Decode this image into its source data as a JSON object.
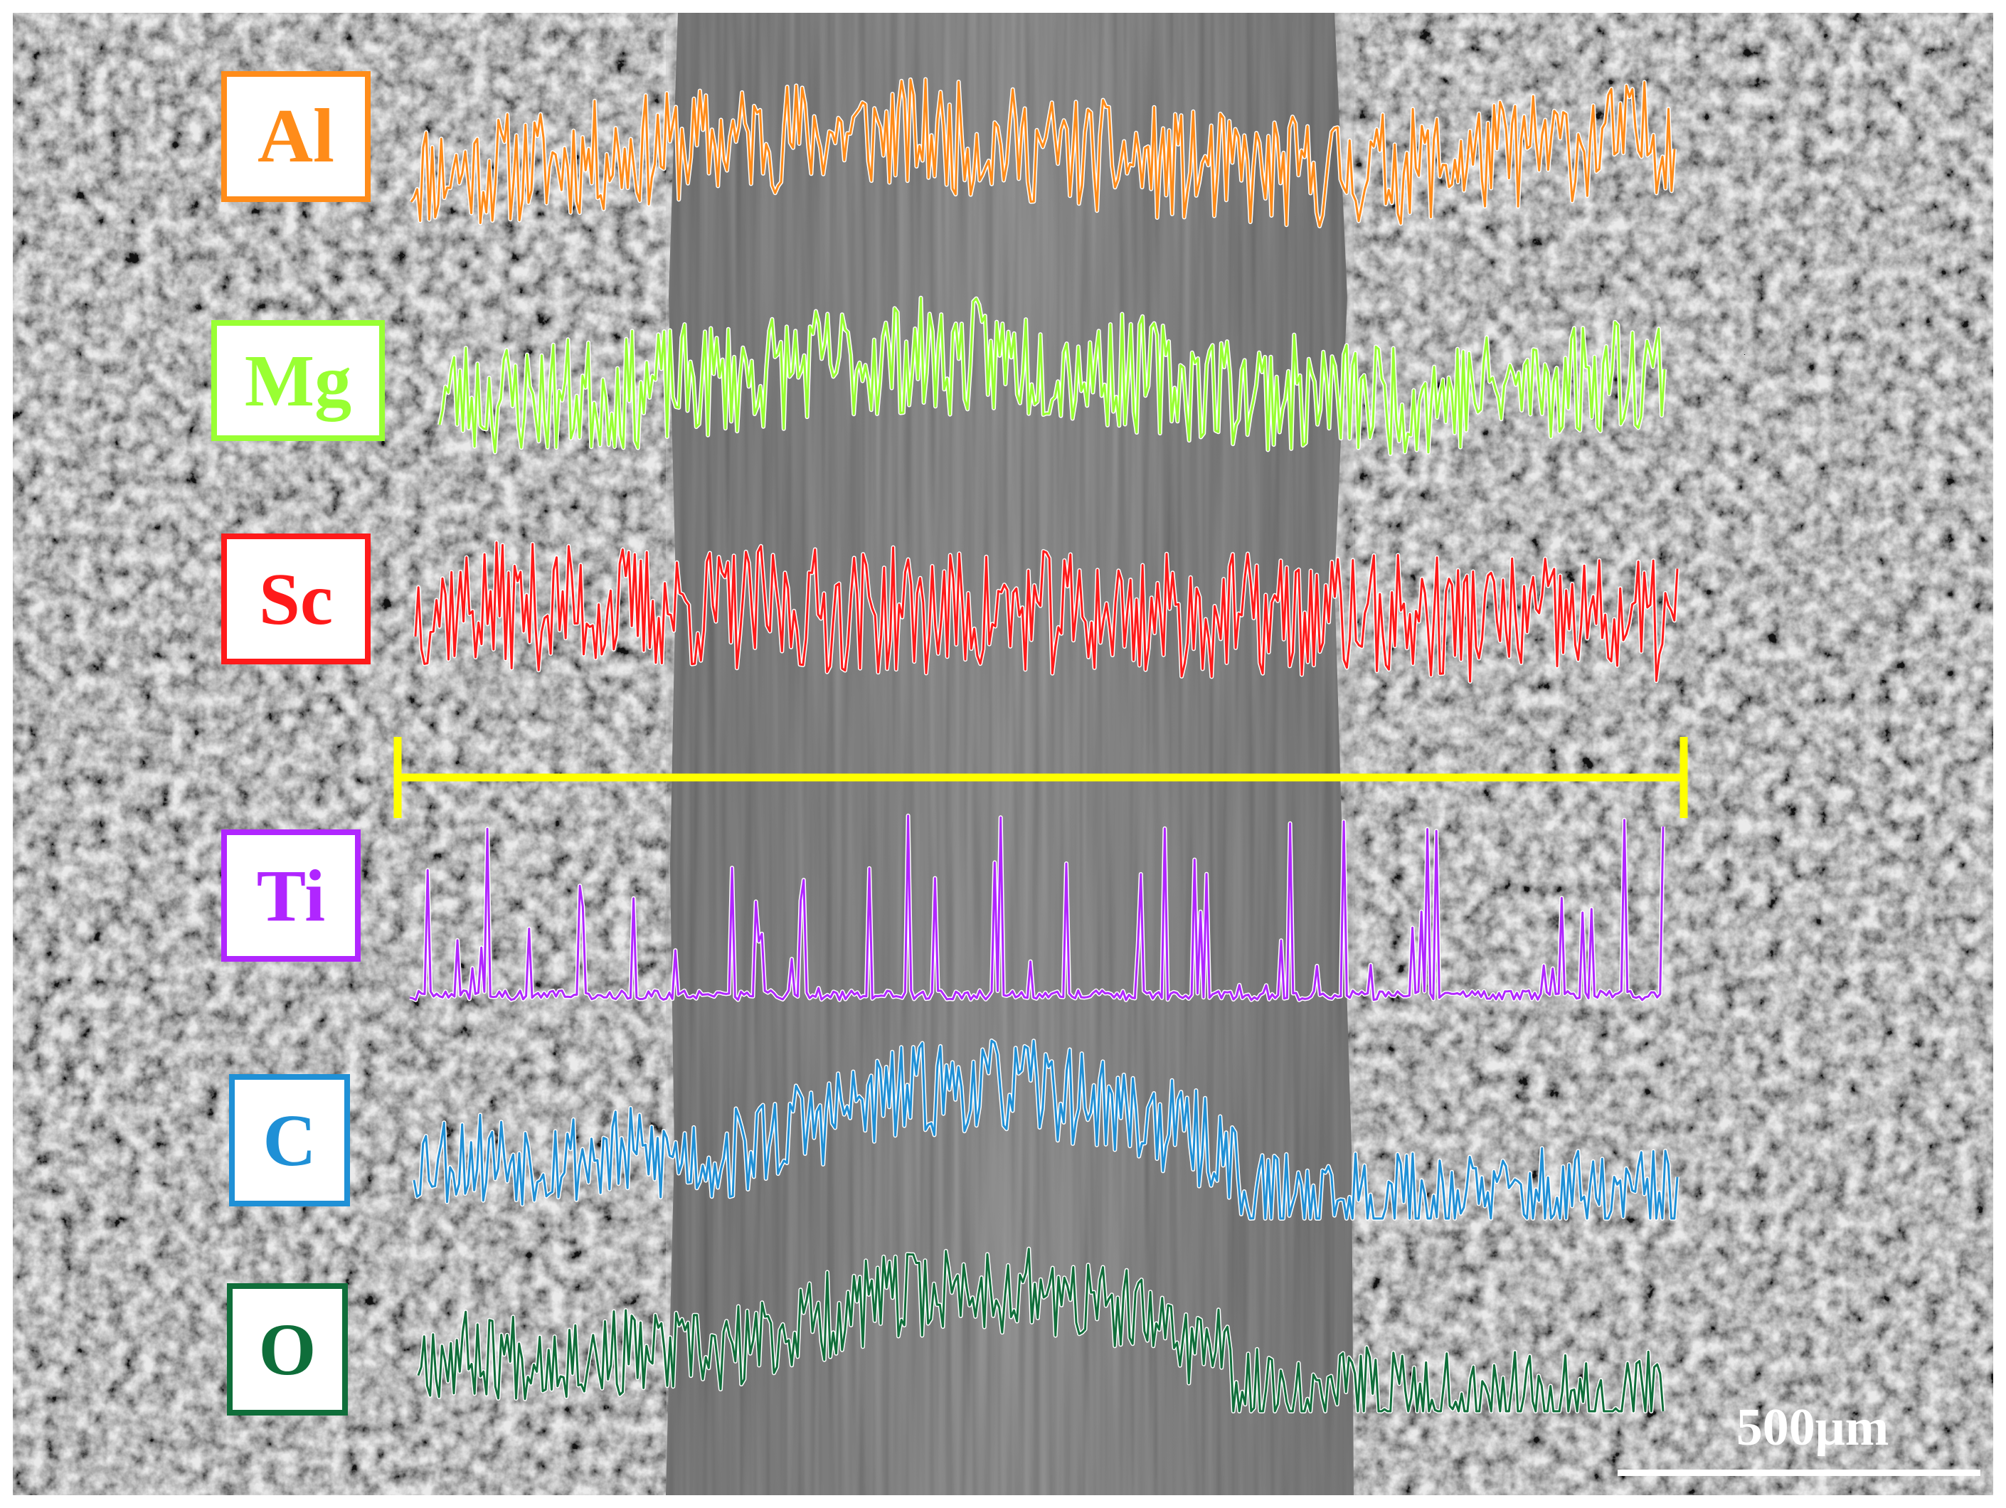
{
  "figure": {
    "scale_bar_label": "500μm",
    "line_scan_color": "#ffff00",
    "elements": [
      {
        "symbol": "Al",
        "color": "#ff8c1a",
        "seed": 11,
        "profile": "uniform"
      },
      {
        "symbol": "Mg",
        "color": "#99ff33",
        "seed": 23,
        "profile": "uniform"
      },
      {
        "symbol": "Sc",
        "color": "#ff1a1a",
        "seed": 37,
        "profile": "dense"
      },
      {
        "symbol": "Ti",
        "color": "#b026ff",
        "seed": 41,
        "profile": "spiky"
      },
      {
        "symbol": "C",
        "color": "#1f90d6",
        "seed": 53,
        "profile": "hump"
      },
      {
        "symbol": "O",
        "color": "#0f6e3a",
        "seed": 67,
        "profile": "hump"
      }
    ]
  }
}
